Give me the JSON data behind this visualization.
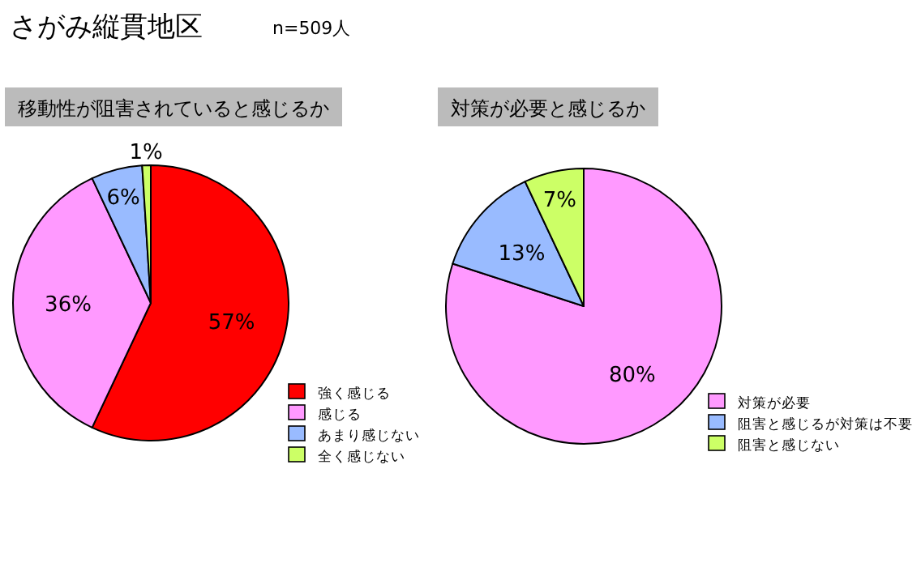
{
  "chart_data": [
    {
      "type": "other",
      "title": "さがみ縦貫地区",
      "subtitle": "n=509人"
    },
    {
      "type": "pie",
      "title": "移動性が阻害されていると感じるか",
      "categories": [
        "強く感じる",
        "感じる",
        "あまり感じない",
        "全く感じない"
      ],
      "values": [
        57,
        36,
        6,
        1
      ],
      "value_labels": [
        "57%",
        "36%",
        "6%",
        "1%"
      ],
      "colors": [
        "#ff0000",
        "#ff99ff",
        "#99bbff",
        "#ccff66"
      ],
      "legend": "bottom right"
    },
    {
      "type": "pie",
      "title": "対策が必要と感じるか",
      "categories": [
        "対策が必要",
        "阻害と感じるが対策は不要",
        "阻害と感じない"
      ],
      "values": [
        80,
        13,
        7
      ],
      "value_labels": [
        "80%",
        "13%",
        "7%"
      ],
      "colors": [
        "#ff99ff",
        "#99bbff",
        "#ccff66"
      ],
      "legend": "bottom right"
    }
  ]
}
